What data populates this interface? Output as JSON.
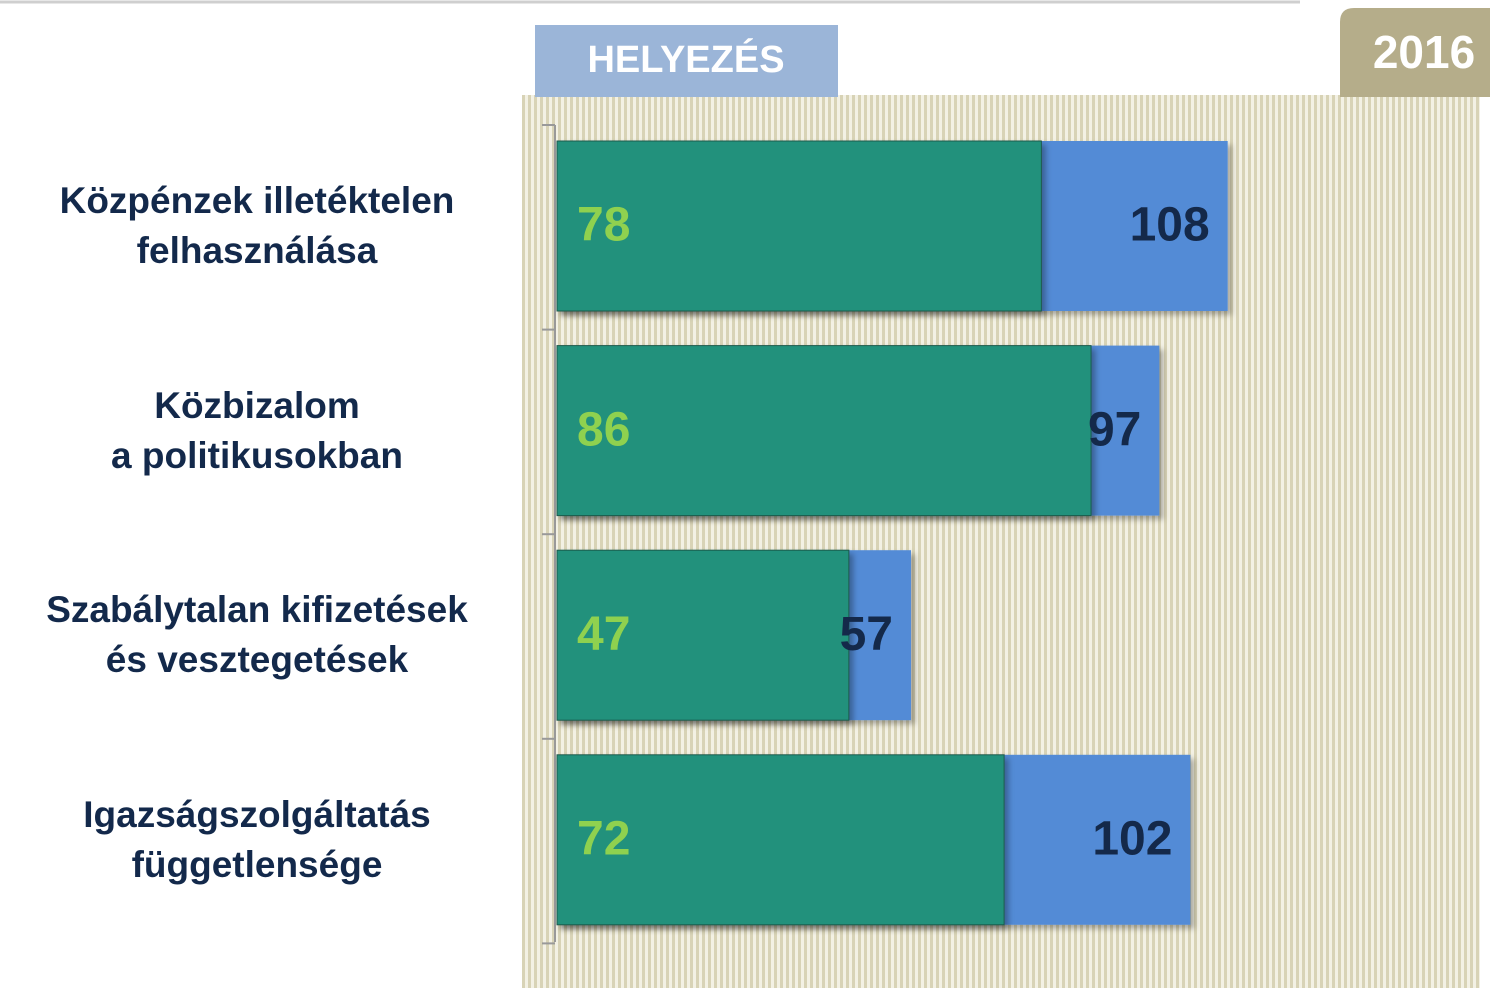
{
  "chart_data": {
    "type": "hbar_overlap",
    "header": "HELYEZÉS",
    "year": "2016",
    "categories": [
      "Közpénzek illetéktelen\nfelhasználása",
      "Közbizalom\na politikusokban",
      "Szabálytalan kifizetések\nés vesztegetések",
      "Igazságszolgáltatás\nfüggetlensége"
    ],
    "series": [
      {
        "color": "#528bd6",
        "label_color": "#14294a",
        "values": [
          108,
          97,
          57,
          102
        ]
      },
      {
        "color": "#22917c",
        "label_color": "#8fd14f",
        "values": [
          78,
          86,
          47,
          72
        ]
      }
    ]
  }
}
